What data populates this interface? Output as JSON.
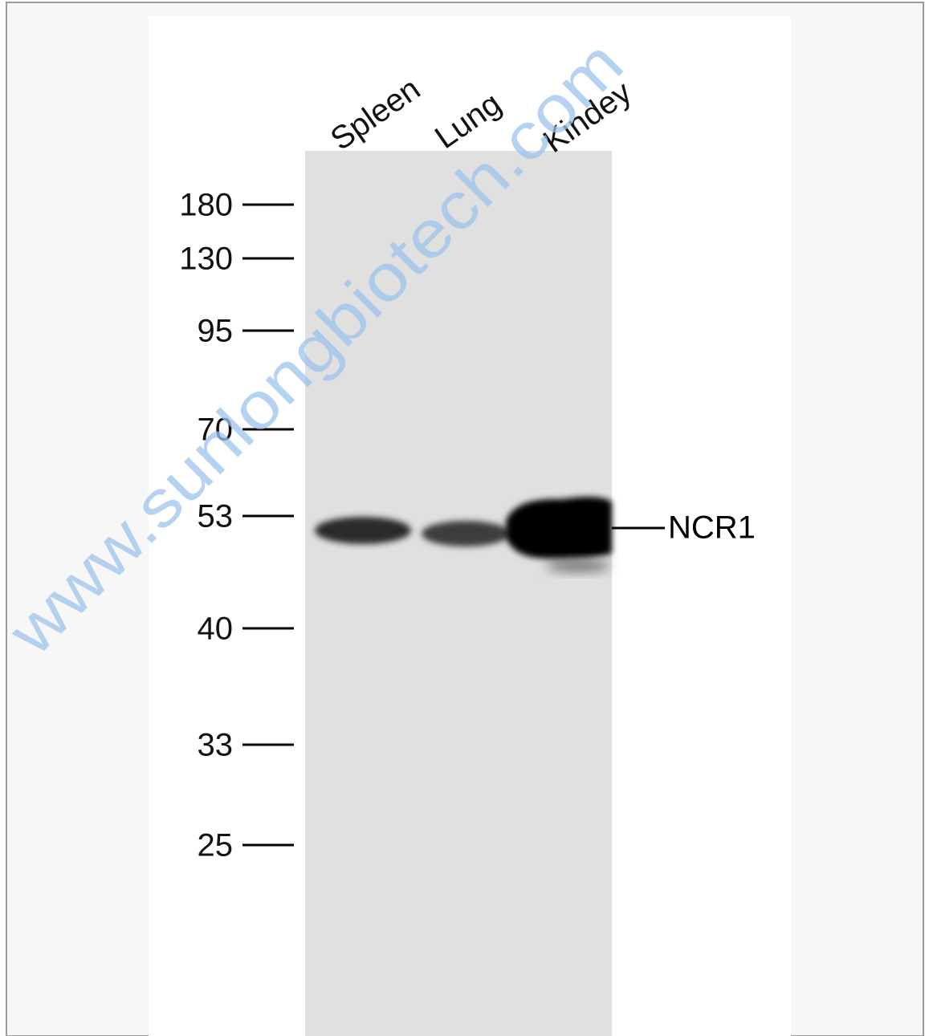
{
  "lanes": [
    "Spleen",
    "Lung",
    "Kindey"
  ],
  "markers": [
    "180",
    "130",
    "95",
    "70",
    "53",
    "40",
    "33",
    "25"
  ],
  "band_label": "NCR1",
  "watermark": "www.sunlongbiotech.com"
}
